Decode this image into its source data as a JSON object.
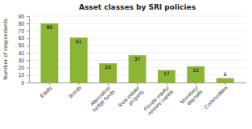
{
  "chart_data": {
    "type": "bar",
    "title": "Asset classes by SRI policies",
    "categories": [
      "Equity",
      "Bonds",
      "Alternative/\nhedge funds",
      "Real estate/\nproperty",
      "Private equity/\nventure capital",
      "Monetary/\ndeposits",
      "Commodities"
    ],
    "values": [
      80,
      61,
      26,
      37,
      17,
      22,
      6
    ],
    "color": "#8db534",
    "ylabel": "Number of respondents",
    "ylim": [
      0,
      90
    ],
    "yticks": [
      0,
      10,
      20,
      30,
      40,
      50,
      60,
      70,
      80,
      90
    ],
    "grid": true,
    "data_labels": true
  }
}
